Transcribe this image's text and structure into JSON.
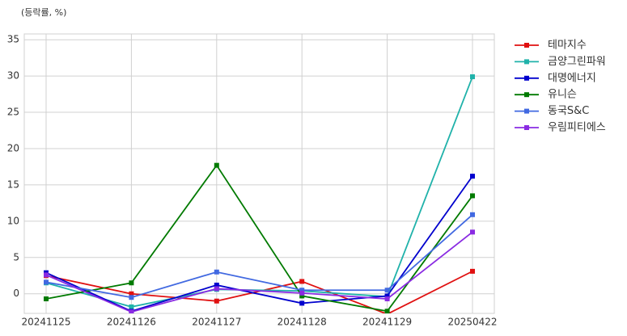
{
  "chart_data": {
    "type": "line",
    "title": "(등락률, %)",
    "categories": [
      "20241125",
      "20241126",
      "20241127",
      "20241128",
      "20241129",
      "20250422"
    ],
    "series": [
      {
        "name": "테마지수",
        "color": "#e01010",
        "values": [
          2.5,
          0.0,
          -1.0,
          1.7,
          -2.8,
          3.1
        ]
      },
      {
        "name": "금양그린파워",
        "color": "#20b2aa",
        "values": [
          1.5,
          -1.8,
          0.6,
          0.4,
          -0.4,
          29.9
        ]
      },
      {
        "name": "대명에너지",
        "color": "#0000cd",
        "values": [
          2.9,
          -2.4,
          1.2,
          -1.3,
          -0.3,
          16.2
        ]
      },
      {
        "name": "유니슨",
        "color": "#007a00",
        "values": [
          -0.7,
          1.5,
          17.7,
          -0.3,
          -2.4,
          13.5
        ]
      },
      {
        "name": "동국S&C",
        "color": "#4169e1",
        "values": [
          1.6,
          -0.5,
          3.0,
          0.5,
          0.5,
          10.9
        ]
      },
      {
        "name": "우림피티에스",
        "color": "#8a2be2",
        "values": [
          2.6,
          -2.5,
          0.7,
          0.1,
          -0.7,
          8.5
        ]
      }
    ],
    "ylim": [
      -2.7,
      35.8
    ],
    "yticks": [
      0,
      5,
      10,
      15,
      20,
      25,
      30,
      35
    ],
    "grid": true,
    "legend": "outside-right"
  }
}
